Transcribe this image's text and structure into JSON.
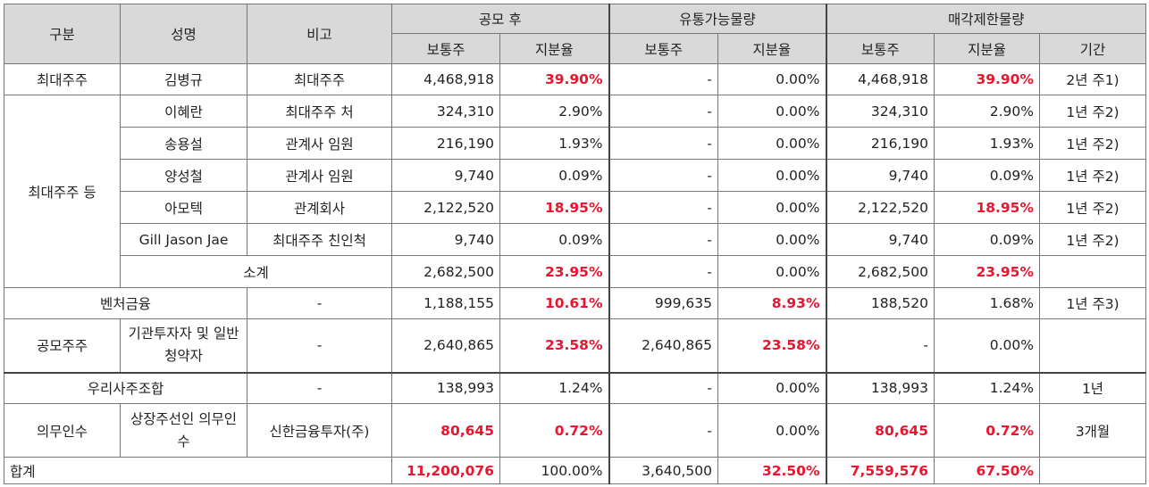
{
  "header": {
    "gubun": "구분",
    "name": "성명",
    "note": "비고",
    "group_public": "공모 후",
    "group_float": "유통가능물량",
    "group_lock": "매각제한물량",
    "common": "보통주",
    "ratio": "지분율",
    "period": "기간"
  },
  "rows": {
    "r1": {
      "gubun": "최대주주",
      "name": "김병규",
      "note": "최대주주",
      "pub_shares": "4,468,918",
      "pub_ratio": "39.90%",
      "flt_shares": "-",
      "flt_ratio": "0.00%",
      "lock_shares": "4,468,918",
      "lock_ratio": "39.90%",
      "period": "2년 주1)"
    },
    "r2": {
      "gubun": "최대주주 등",
      "name": "이혜란",
      "note": "최대주주 처",
      "pub_shares": "324,310",
      "pub_ratio": "2.90%",
      "flt_shares": "-",
      "flt_ratio": "0.00%",
      "lock_shares": "324,310",
      "lock_ratio": "2.90%",
      "period": "1년 주2)"
    },
    "r3": {
      "name": "송용설",
      "note": "관계사 임원",
      "pub_shares": "216,190",
      "pub_ratio": "1.93%",
      "flt_shares": "-",
      "flt_ratio": "0.00%",
      "lock_shares": "216,190",
      "lock_ratio": "1.93%",
      "period": "1년 주2)"
    },
    "r4": {
      "name": "양성철",
      "note": "관계사 임원",
      "pub_shares": "9,740",
      "pub_ratio": "0.09%",
      "flt_shares": "-",
      "flt_ratio": "0.00%",
      "lock_shares": "9,740",
      "lock_ratio": "0.09%",
      "period": "1년 주2)"
    },
    "r5": {
      "name": "아모텍",
      "note": "관계회사",
      "pub_shares": "2,122,520",
      "pub_ratio": "18.95%",
      "flt_shares": "-",
      "flt_ratio": "0.00%",
      "lock_shares": "2,122,520",
      "lock_ratio": "18.95%",
      "period": "1년 주2)"
    },
    "r6": {
      "name": "Gill Jason Jae",
      "note": "최대주주 친인척",
      "pub_shares": "9,740",
      "pub_ratio": "0.09%",
      "flt_shares": "-",
      "flt_ratio": "0.00%",
      "lock_shares": "9,740",
      "lock_ratio": "0.09%",
      "period": "1년 주2)"
    },
    "r7": {
      "name": "소계",
      "pub_shares": "2,682,500",
      "pub_ratio": "23.95%",
      "flt_shares": "-",
      "flt_ratio": "0.00%",
      "lock_shares": "2,682,500",
      "lock_ratio": "23.95%",
      "period": ""
    },
    "r8": {
      "gubun": "벤처금융",
      "note": "-",
      "pub_shares": "1,188,155",
      "pub_ratio": "10.61%",
      "flt_shares": "999,635",
      "flt_ratio": "8.93%",
      "lock_shares": "188,520",
      "lock_ratio": "1.68%",
      "period": "1년 주3)"
    },
    "r9": {
      "gubun": "공모주주",
      "name": "기관투자자 및 일반청약자",
      "note": "-",
      "pub_shares": "2,640,865",
      "pub_ratio": "23.58%",
      "flt_shares": "2,640,865",
      "flt_ratio": "23.58%",
      "lock_shares": "-",
      "lock_ratio": "0.00%",
      "period": ""
    },
    "r10": {
      "gubun": "우리사주조합",
      "note": "-",
      "pub_shares": "138,993",
      "pub_ratio": "1.24%",
      "flt_shares": "-",
      "flt_ratio": "0.00%",
      "lock_shares": "138,993",
      "lock_ratio": "1.24%",
      "period": "1년"
    },
    "r11": {
      "gubun": "의무인수",
      "name": "상장주선인 의무인수",
      "note": "신한금융투자(주)",
      "pub_shares": "80,645",
      "pub_ratio": "0.72%",
      "flt_shares": "-",
      "flt_ratio": "0.00%",
      "lock_shares": "80,645",
      "lock_ratio": "0.72%",
      "period": "3개월"
    },
    "r12": {
      "gubun": "합계",
      "pub_shares": "11,200,076",
      "pub_ratio": "100.00%",
      "flt_shares": "3,640,500",
      "flt_ratio": "32.50%",
      "lock_shares": "7,559,576",
      "lock_ratio": "67.50%",
      "period": ""
    }
  },
  "colors": {
    "highlight": "#e8162f",
    "header_bg": "#d9d9d9",
    "border": "#777777"
  }
}
